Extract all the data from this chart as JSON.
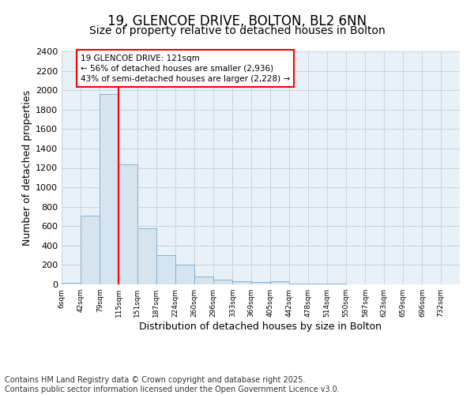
{
  "title1": "19, GLENCOE DRIVE, BOLTON, BL2 6NN",
  "title2": "Size of property relative to detached houses in Bolton",
  "xlabel": "Distribution of detached houses by size in Bolton",
  "ylabel": "Number of detached properties",
  "bin_labels": [
    "6sqm",
    "42sqm",
    "79sqm",
    "115sqm",
    "151sqm",
    "187sqm",
    "224sqm",
    "260sqm",
    "296sqm",
    "333sqm",
    "369sqm",
    "405sqm",
    "442sqm",
    "478sqm",
    "514sqm",
    "550sqm",
    "587sqm",
    "623sqm",
    "659sqm",
    "696sqm",
    "732sqm"
  ],
  "bin_edges": [
    6,
    42,
    79,
    115,
    151,
    187,
    224,
    260,
    296,
    333,
    369,
    405,
    442,
    478,
    514,
    550,
    587,
    623,
    659,
    696,
    732
  ],
  "bar_heights": [
    20,
    710,
    1960,
    1240,
    575,
    305,
    200,
    85,
    50,
    35,
    25,
    30,
    5,
    5,
    5,
    2,
    2,
    2,
    2,
    2
  ],
  "bar_color": "#d6e4f0",
  "bar_edgecolor": "#7aabcc",
  "property_line_x": 115,
  "annotation_line1": "19 GLENCOE DRIVE: 121sqm",
  "annotation_line2": "← 56% of detached houses are smaller (2,936)",
  "annotation_line3": "43% of semi-detached houses are larger (2,228) →",
  "ylim": [
    0,
    2400
  ],
  "yticks": [
    0,
    200,
    400,
    600,
    800,
    1000,
    1200,
    1400,
    1600,
    1800,
    2000,
    2200,
    2400
  ],
  "grid_color": "#c8d4e0",
  "bg_color": "#e8f0f8",
  "footer_text": "Contains HM Land Registry data © Crown copyright and database right 2025.\nContains public sector information licensed under the Open Government Licence v3.0.",
  "title1_fontsize": 12,
  "title2_fontsize": 10,
  "xlabel_fontsize": 9,
  "ylabel_fontsize": 9,
  "tick_fontsize": 8,
  "footer_fontsize": 7
}
